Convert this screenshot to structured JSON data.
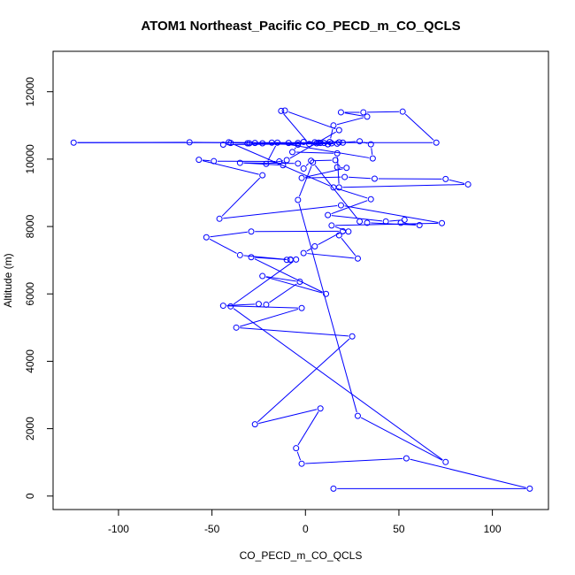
{
  "chart_data": {
    "type": "line",
    "title": "ATOM1 Northeast_Pacific CO_PECD_m_CO_QCLS",
    "xlabel": "CO_PECD_m_CO_QCLS",
    "ylabel": "Altitude (m)",
    "xlim": [
      -135,
      130
    ],
    "ylim": [
      -400,
      13200
    ],
    "xticks": [
      -100,
      -50,
      0,
      50,
      100
    ],
    "xtick_labels": [
      "-100",
      "-50",
      "0",
      "50",
      "100"
    ],
    "yticks": [
      0,
      2000,
      4000,
      6000,
      8000,
      10000,
      12000
    ],
    "ytick_labels": [
      "0",
      "2000",
      "4000",
      "6000",
      "8000",
      "10000",
      "12000"
    ],
    "grid": false,
    "series": [
      {
        "color": "#0000ff",
        "marker": "open-circle",
        "points": [
          [
            15,
            220
          ],
          [
            120,
            220
          ],
          [
            54,
            1120
          ],
          [
            -2,
            960
          ],
          [
            -5,
            1420
          ],
          [
            8,
            2600
          ],
          [
            -27,
            2130
          ],
          [
            25,
            4740
          ],
          [
            -37,
            5000
          ],
          [
            -2,
            5580
          ],
          [
            -44,
            5650
          ],
          [
            -25,
            5700
          ],
          [
            -21,
            5680
          ],
          [
            -3,
            6360
          ],
          [
            -23,
            6530
          ],
          [
            11,
            6000
          ],
          [
            -29,
            7090
          ],
          [
            -8,
            7010
          ],
          [
            -35,
            7150
          ],
          [
            -53,
            7680
          ],
          [
            -29,
            7850
          ],
          [
            20,
            7860
          ],
          [
            5,
            7410
          ],
          [
            -1,
            7210
          ],
          [
            28,
            7050
          ],
          [
            18,
            7740
          ],
          [
            23,
            7850
          ],
          [
            14,
            8030
          ],
          [
            73,
            8100
          ],
          [
            19,
            8630
          ],
          [
            -46,
            8230
          ],
          [
            -23,
            9520
          ],
          [
            -57,
            9980
          ],
          [
            -49,
            9940
          ],
          [
            -14,
            9930
          ],
          [
            -12,
            9820
          ],
          [
            -35,
            9890
          ],
          [
            -4,
            9870
          ],
          [
            -1,
            9720
          ],
          [
            3,
            9950
          ],
          [
            16,
            9970
          ],
          [
            17,
            9760
          ],
          [
            22,
            9740
          ],
          [
            -2,
            9440
          ],
          [
            21,
            9470
          ],
          [
            37,
            9420
          ],
          [
            75,
            9410
          ],
          [
            87,
            9250
          ],
          [
            18,
            9160
          ],
          [
            17,
            10170
          ],
          [
            -7,
            10210
          ],
          [
            -4,
            10430
          ],
          [
            -31,
            10470
          ],
          [
            -23,
            10470
          ],
          [
            -18,
            10490
          ],
          [
            -9,
            10480
          ],
          [
            -4,
            10480
          ],
          [
            -1,
            10510
          ],
          [
            7,
            10490
          ],
          [
            14,
            10470
          ],
          [
            29,
            10530
          ],
          [
            35,
            10440
          ],
          [
            36,
            10020
          ],
          [
            -15,
            10490
          ],
          [
            -21,
            9860
          ],
          [
            -10,
            9970
          ],
          [
            18,
            10860
          ],
          [
            -11,
            11440
          ],
          [
            -13,
            11430
          ],
          [
            2,
            10450
          ],
          [
            8,
            10480
          ],
          [
            12,
            10440
          ],
          [
            5,
            10500
          ],
          [
            20,
            10490
          ],
          [
            17,
            10460
          ],
          [
            -44,
            10430
          ],
          [
            -41,
            10500
          ],
          [
            -27,
            10480
          ],
          [
            -62,
            10500
          ],
          [
            -124,
            10490
          ],
          [
            70,
            10490
          ],
          [
            52,
            11410
          ],
          [
            31,
            11390
          ],
          [
            19,
            11390
          ],
          [
            33,
            11260
          ],
          [
            15,
            11000
          ],
          [
            13,
            10510
          ],
          [
            18,
            10500
          ],
          [
            10,
            10480
          ],
          [
            6,
            10470
          ],
          [
            -30,
            10470
          ],
          [
            -40,
            10480
          ],
          [
            15,
            9160
          ],
          [
            35,
            8810
          ],
          [
            12,
            8340
          ],
          [
            43,
            8150
          ],
          [
            53,
            8200
          ],
          [
            51,
            8110
          ],
          [
            61,
            8040
          ],
          [
            33,
            8110
          ],
          [
            29,
            8150
          ],
          [
            4,
            9900
          ],
          [
            -4,
            8790
          ],
          [
            28,
            2380
          ],
          [
            75,
            1010
          ],
          [
            -40,
            5630
          ],
          [
            -5,
            7020
          ],
          [
            -8,
            7020
          ],
          [
            -10,
            7010
          ]
        ]
      }
    ]
  }
}
